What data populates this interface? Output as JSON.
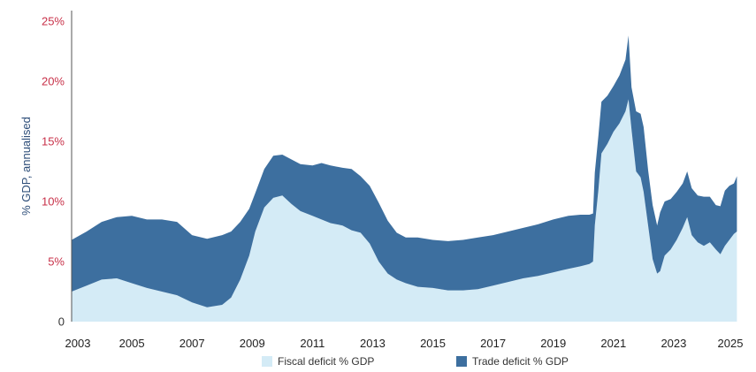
{
  "chart_data": {
    "type": "area",
    "stacked": true,
    "ylabel": "% GDP, annualised",
    "ylim": [
      0,
      25
    ],
    "xlim": [
      2003,
      2025
    ],
    "y_ticks": [
      {
        "value": 0,
        "label": "0"
      },
      {
        "value": 5,
        "label": "5%"
      },
      {
        "value": 10,
        "label": "10%"
      },
      {
        "value": 15,
        "label": "15%"
      },
      {
        "value": 20,
        "label": "20%"
      },
      {
        "value": 25,
        "label": "25%"
      }
    ],
    "x_ticks": [
      "2003",
      "2005",
      "2007",
      "2009",
      "2011",
      "2013",
      "2015",
      "2017",
      "2019",
      "2021",
      "2023",
      "2025"
    ],
    "grid": false,
    "legend_position": "bottom",
    "series": [
      {
        "name": "Fiscal deficit % GDP",
        "color": "#d4ebf6",
        "points": [
          [
            2003.0,
            2.5
          ],
          [
            2003.5,
            3.0
          ],
          [
            2004.0,
            3.5
          ],
          [
            2004.5,
            3.6
          ],
          [
            2005.0,
            3.2
          ],
          [
            2005.5,
            2.8
          ],
          [
            2006.0,
            2.5
          ],
          [
            2006.5,
            2.2
          ],
          [
            2007.0,
            1.6
          ],
          [
            2007.5,
            1.2
          ],
          [
            2008.0,
            1.4
          ],
          [
            2008.3,
            2.0
          ],
          [
            2008.6,
            3.5
          ],
          [
            2008.9,
            5.5
          ],
          [
            2009.1,
            7.5
          ],
          [
            2009.4,
            9.5
          ],
          [
            2009.7,
            10.3
          ],
          [
            2010.0,
            10.5
          ],
          [
            2010.3,
            9.8
          ],
          [
            2010.6,
            9.2
          ],
          [
            2011.0,
            8.8
          ],
          [
            2011.3,
            8.5
          ],
          [
            2011.6,
            8.2
          ],
          [
            2012.0,
            8.0
          ],
          [
            2012.3,
            7.6
          ],
          [
            2012.6,
            7.4
          ],
          [
            2012.9,
            6.5
          ],
          [
            2013.2,
            5.0
          ],
          [
            2013.5,
            4.0
          ],
          [
            2013.8,
            3.5
          ],
          [
            2014.1,
            3.2
          ],
          [
            2014.5,
            2.9
          ],
          [
            2015.0,
            2.8
          ],
          [
            2015.5,
            2.6
          ],
          [
            2016.0,
            2.6
          ],
          [
            2016.5,
            2.7
          ],
          [
            2017.0,
            3.0
          ],
          [
            2017.5,
            3.3
          ],
          [
            2018.0,
            3.6
          ],
          [
            2018.5,
            3.8
          ],
          [
            2019.0,
            4.1
          ],
          [
            2019.5,
            4.4
          ],
          [
            2019.9,
            4.6
          ],
          [
            2020.2,
            4.8
          ],
          [
            2020.32,
            5.0
          ],
          [
            2020.38,
            8.0
          ],
          [
            2020.5,
            11.0
          ],
          [
            2020.6,
            14.0
          ],
          [
            2020.8,
            14.8
          ],
          [
            2021.0,
            15.8
          ],
          [
            2021.2,
            16.5
          ],
          [
            2021.4,
            17.5
          ],
          [
            2021.5,
            18.5
          ],
          [
            2021.6,
            16.0
          ],
          [
            2021.75,
            12.5
          ],
          [
            2021.9,
            12.0
          ],
          [
            2022.0,
            10.8
          ],
          [
            2022.15,
            8.0
          ],
          [
            2022.3,
            5.2
          ],
          [
            2022.45,
            4.0
          ],
          [
            2022.55,
            4.2
          ],
          [
            2022.7,
            5.5
          ],
          [
            2022.9,
            6.0
          ],
          [
            2023.1,
            6.8
          ],
          [
            2023.3,
            7.8
          ],
          [
            2023.45,
            8.7
          ],
          [
            2023.6,
            7.2
          ],
          [
            2023.8,
            6.6
          ],
          [
            2024.0,
            6.3
          ],
          [
            2024.2,
            6.6
          ],
          [
            2024.4,
            6.0
          ],
          [
            2024.55,
            5.6
          ],
          [
            2024.7,
            6.3
          ],
          [
            2024.85,
            6.8
          ],
          [
            2025.0,
            7.3
          ],
          [
            2025.1,
            7.5
          ]
        ]
      },
      {
        "name": "Trade deficit % GDP",
        "color": "#3d6f9f",
        "points": [
          [
            2003.0,
            4.3
          ],
          [
            2003.5,
            4.5
          ],
          [
            2004.0,
            4.8
          ],
          [
            2004.5,
            5.1
          ],
          [
            2005.0,
            5.6
          ],
          [
            2005.5,
            5.7
          ],
          [
            2006.0,
            6.0
          ],
          [
            2006.5,
            6.1
          ],
          [
            2007.0,
            5.6
          ],
          [
            2007.5,
            5.7
          ],
          [
            2008.0,
            5.8
          ],
          [
            2008.3,
            5.5
          ],
          [
            2008.6,
            4.8
          ],
          [
            2008.9,
            3.9
          ],
          [
            2009.1,
            3.2
          ],
          [
            2009.4,
            3.2
          ],
          [
            2009.7,
            3.5
          ],
          [
            2010.0,
            3.4
          ],
          [
            2010.3,
            3.7
          ],
          [
            2010.6,
            3.9
          ],
          [
            2011.0,
            4.2
          ],
          [
            2011.3,
            4.7
          ],
          [
            2011.6,
            4.8
          ],
          [
            2012.0,
            4.8
          ],
          [
            2012.3,
            5.1
          ],
          [
            2012.6,
            4.7
          ],
          [
            2012.9,
            4.8
          ],
          [
            2013.2,
            4.9
          ],
          [
            2013.5,
            4.4
          ],
          [
            2013.8,
            3.9
          ],
          [
            2014.1,
            3.8
          ],
          [
            2014.5,
            4.1
          ],
          [
            2015.0,
            4.0
          ],
          [
            2015.5,
            4.1
          ],
          [
            2016.0,
            4.2
          ],
          [
            2016.5,
            4.3
          ],
          [
            2017.0,
            4.2
          ],
          [
            2017.5,
            4.2
          ],
          [
            2018.0,
            4.2
          ],
          [
            2018.5,
            4.3
          ],
          [
            2019.0,
            4.4
          ],
          [
            2019.5,
            4.4
          ],
          [
            2019.9,
            4.3
          ],
          [
            2020.2,
            4.1
          ],
          [
            2020.32,
            4.0
          ],
          [
            2020.38,
            4.4
          ],
          [
            2020.5,
            4.5
          ],
          [
            2020.6,
            4.3
          ],
          [
            2020.8,
            4.0
          ],
          [
            2021.0,
            3.8
          ],
          [
            2021.2,
            4.0
          ],
          [
            2021.4,
            4.3
          ],
          [
            2021.5,
            5.3
          ],
          [
            2021.6,
            3.5
          ],
          [
            2021.75,
            5.0
          ],
          [
            2021.9,
            5.3
          ],
          [
            2022.0,
            5.4
          ],
          [
            2022.15,
            4.6
          ],
          [
            2022.3,
            4.5
          ],
          [
            2022.45,
            4.0
          ],
          [
            2022.55,
            4.9
          ],
          [
            2022.7,
            4.5
          ],
          [
            2022.9,
            4.2
          ],
          [
            2023.1,
            4.0
          ],
          [
            2023.3,
            3.7
          ],
          [
            2023.45,
            3.8
          ],
          [
            2023.6,
            3.9
          ],
          [
            2023.8,
            3.9
          ],
          [
            2024.0,
            4.1
          ],
          [
            2024.2,
            3.8
          ],
          [
            2024.4,
            3.7
          ],
          [
            2024.55,
            4.0
          ],
          [
            2024.7,
            4.6
          ],
          [
            2024.85,
            4.5
          ],
          [
            2025.0,
            4.2
          ],
          [
            2025.1,
            4.6
          ]
        ]
      }
    ]
  }
}
